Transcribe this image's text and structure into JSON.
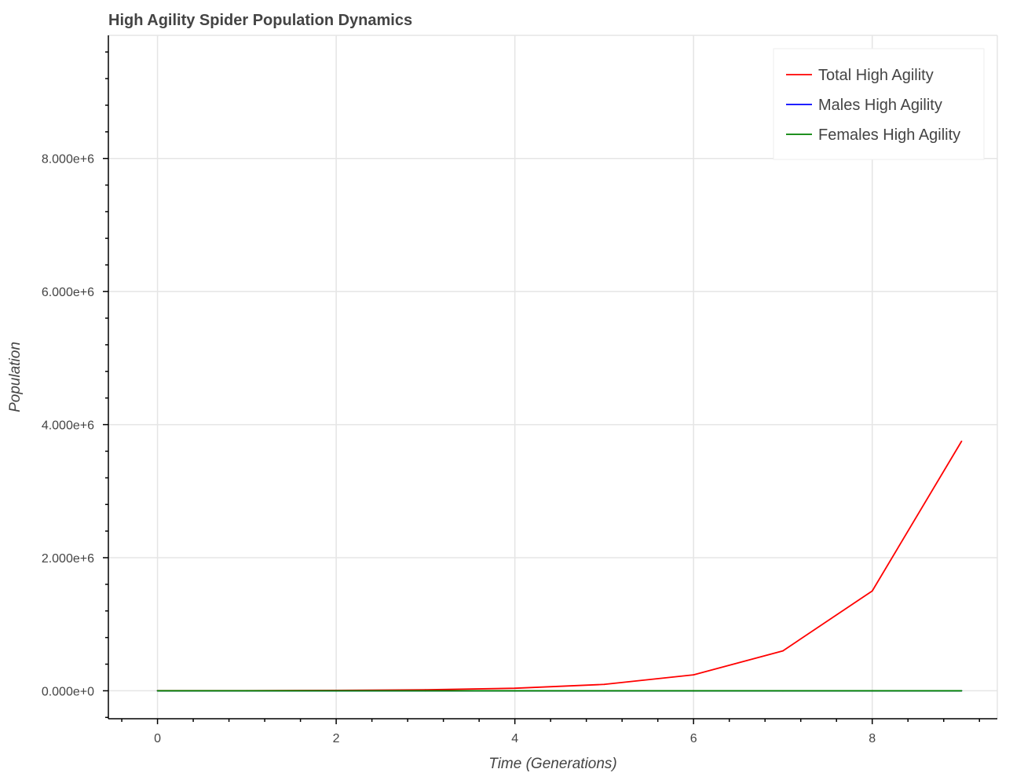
{
  "chart_data": {
    "type": "line",
    "title": "High Agility Spider Population Dynamics",
    "xlabel": "Time (Generations)",
    "ylabel": "Population",
    "x": [
      0,
      1,
      2,
      3,
      4,
      5,
      6,
      7,
      8,
      9
    ],
    "xlim": [
      -0.55,
      9.4
    ],
    "ylim": [
      -420000,
      9850000
    ],
    "x_ticks": [
      0,
      2,
      4,
      6,
      8
    ],
    "x_tick_labels": [
      "0",
      "2",
      "4",
      "6",
      "8"
    ],
    "y_ticks": [
      0,
      2000000,
      4000000,
      6000000,
      8000000
    ],
    "y_tick_labels": [
      "0.000e+0",
      "2.000e+6",
      "4.000e+6",
      "6.000e+6",
      "8.000e+6"
    ],
    "grid": true,
    "legend_position": "top-right",
    "series": [
      {
        "name": "Total High Agility",
        "color": "#ff0000",
        "values": [
          1000,
          2400,
          6000,
          15000,
          38000,
          96000,
          240000,
          600000,
          1500000,
          3750000
        ]
      },
      {
        "name": "Males High Agility",
        "color": "#0000ff",
        "values": [
          0,
          0,
          0,
          0,
          0,
          0,
          0,
          0,
          0,
          0
        ]
      },
      {
        "name": "Females High Agility",
        "color": "#008000",
        "values": [
          0,
          0,
          0,
          0,
          0,
          0,
          0,
          0,
          0,
          0
        ]
      }
    ]
  }
}
